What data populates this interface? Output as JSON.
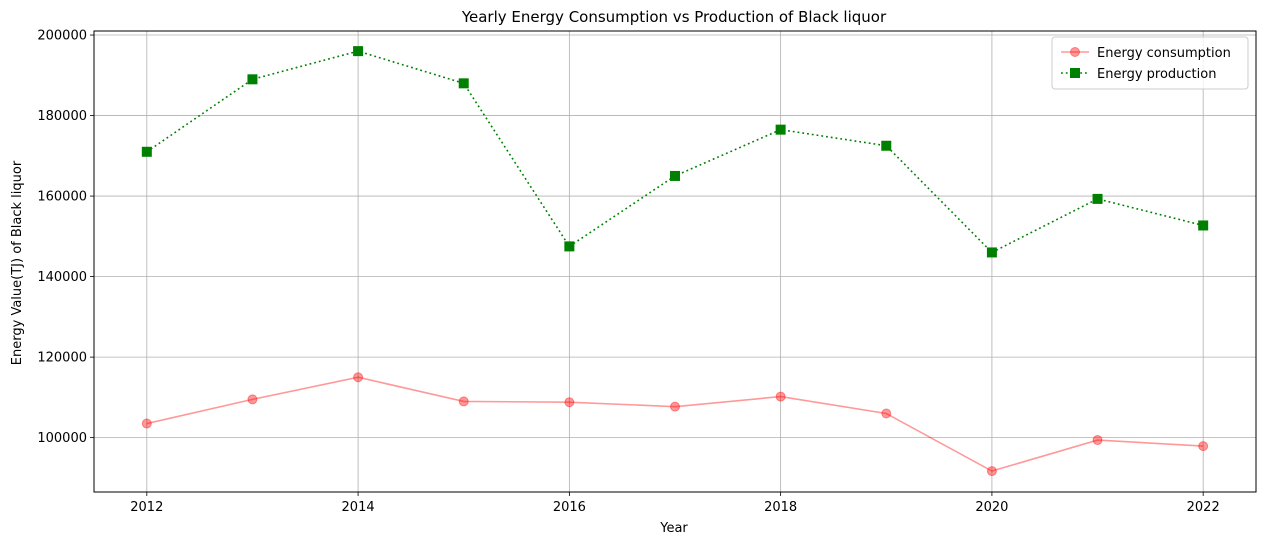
{
  "chart_data": {
    "type": "line",
    "title": "Yearly Energy Consumption vs Production of Black liquor",
    "xlabel": "Year",
    "ylabel": "Energy Value(TJ) of Black liquor",
    "x": [
      2012,
      2013,
      2014,
      2015,
      2016,
      2017,
      2018,
      2019,
      2020,
      2021,
      2022
    ],
    "xticks": [
      2012,
      2014,
      2016,
      2018,
      2020,
      2022
    ],
    "yticks": [
      100000,
      120000,
      140000,
      160000,
      180000,
      200000
    ],
    "xlim": [
      2011.5,
      2022.5
    ],
    "ylim": [
      86500,
      201000
    ],
    "grid": true,
    "legend_position": "top-right",
    "series": [
      {
        "name": "Energy consumption",
        "color": "#ff0000",
        "marker": "circle",
        "linestyle": "solid",
        "values": [
          103500,
          109500,
          115000,
          109000,
          108800,
          107700,
          110200,
          106000,
          91700,
          99400,
          97900
        ]
      },
      {
        "name": "Energy production",
        "color": "#008000",
        "marker": "square",
        "linestyle": "dotted",
        "values": [
          171000,
          189000,
          196000,
          188000,
          147500,
          165000,
          176500,
          172500,
          146000,
          159300,
          152700
        ]
      }
    ]
  }
}
